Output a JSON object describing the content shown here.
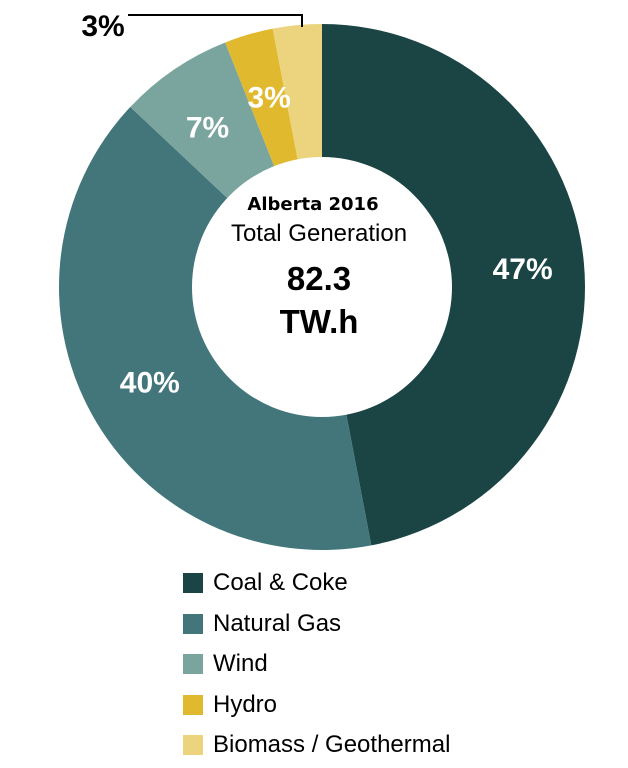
{
  "chart_data": {
    "type": "pie",
    "variant": "donut",
    "title": "Alberta 2016",
    "subtitle": "Total Generation",
    "center_value": "82.3",
    "center_unit": "TW.h",
    "legend_position": "bottom",
    "slices": [
      {
        "name": "Coal & Coke",
        "value": 47,
        "label": "47%",
        "color": "#1b4444"
      },
      {
        "name": "Natural Gas",
        "value": 40,
        "label": "40%",
        "color": "#42767b"
      },
      {
        "name": "Wind",
        "value": 7,
        "label": "7%",
        "color": "#7aa59e"
      },
      {
        "name": "Hydro",
        "value": 3,
        "label": "3%",
        "color": "#e1b92f"
      },
      {
        "name": "Biomass / Geothermal",
        "value": 3,
        "label": "3%",
        "color": "#ecd47e"
      }
    ]
  }
}
